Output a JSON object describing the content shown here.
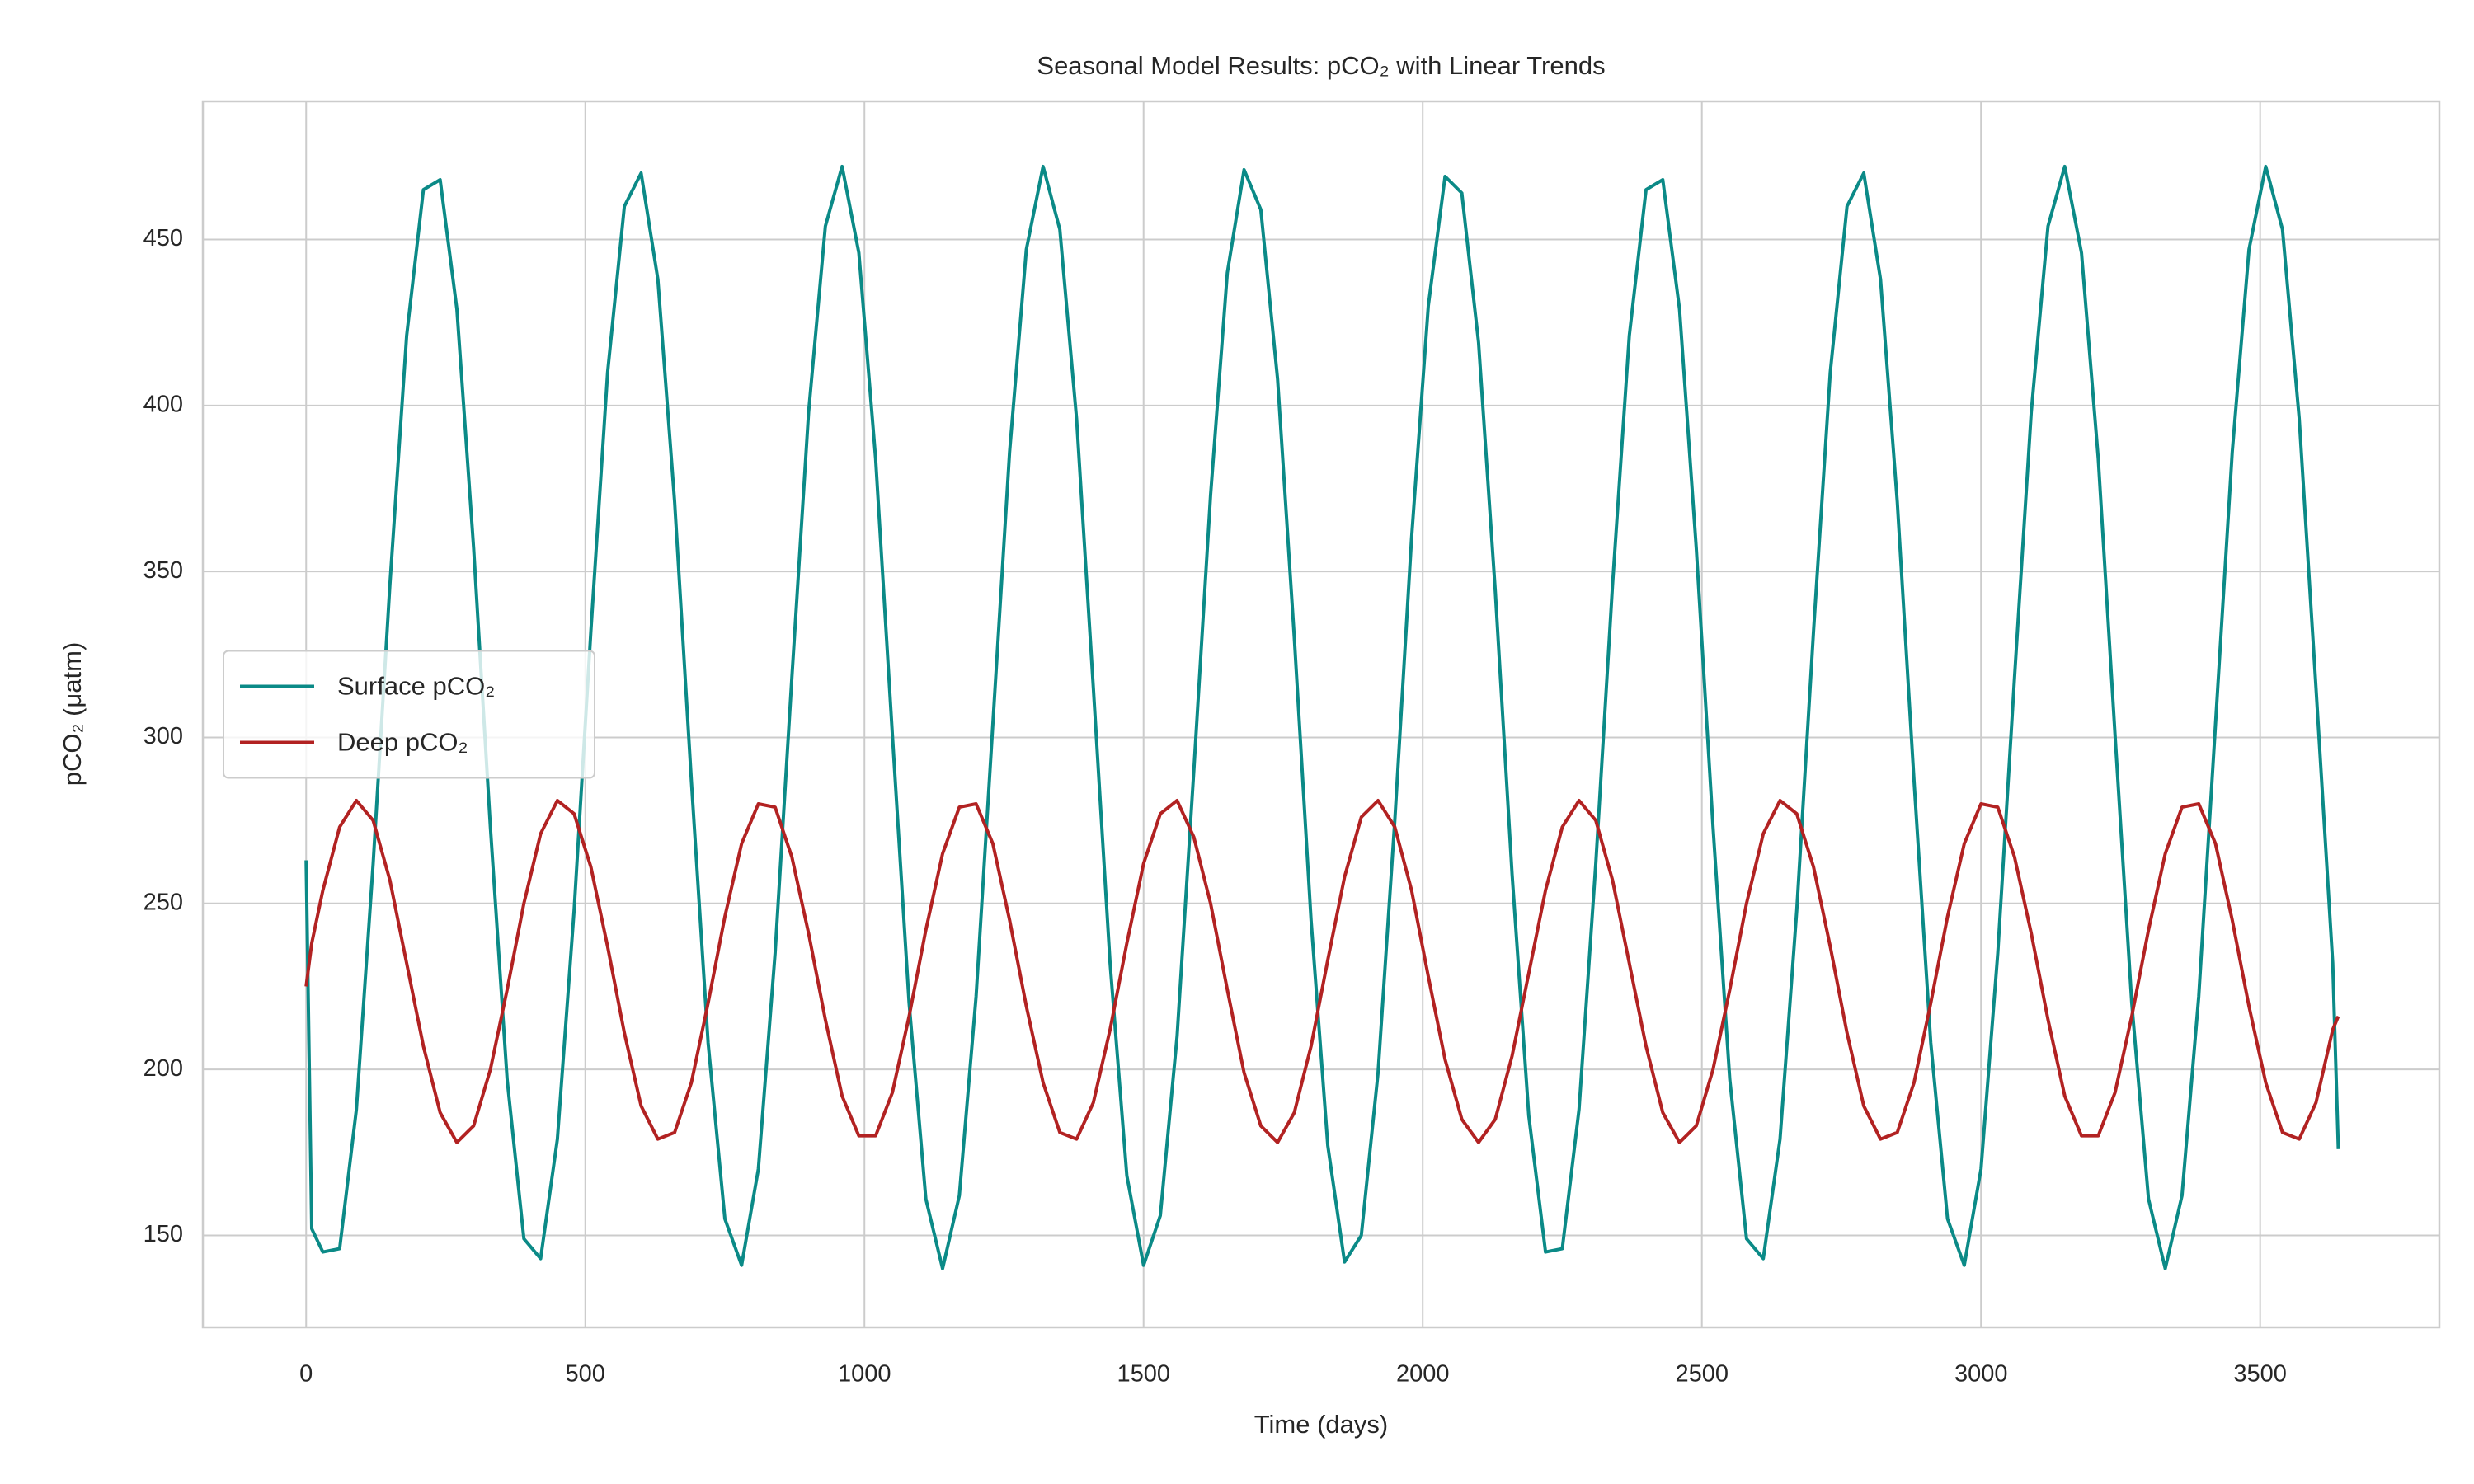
{
  "chart_data": {
    "type": "line",
    "title": "Seasonal Model Results: pCO₂ with Linear Trends",
    "xlabel": "Time (days)",
    "ylabel": "pCO₂ (μatm)",
    "x": [
      0,
      10,
      30,
      60,
      90,
      120,
      150,
      180,
      210,
      240,
      270,
      300,
      330,
      360,
      390,
      420,
      450,
      480,
      510,
      540,
      570,
      600,
      630,
      660,
      690,
      720,
      750,
      780,
      810,
      840,
      870,
      900,
      930,
      960,
      990,
      1020,
      1050,
      1080,
      1110,
      1140,
      1170,
      1200,
      1230,
      1260,
      1290,
      1320,
      1350,
      1380,
      1410,
      1440,
      1470,
      1500,
      1530,
      1560,
      1590,
      1620,
      1650,
      1680,
      1710,
      1740,
      1770,
      1800,
      1830,
      1860,
      1890,
      1920,
      1950,
      1980,
      2010,
      2040,
      2070,
      2100,
      2130,
      2160,
      2190,
      2220,
      2250,
      2280,
      2310,
      2340,
      2370,
      2400,
      2430,
      2460,
      2490,
      2520,
      2550,
      2580,
      2610,
      2640,
      2670,
      2700,
      2730,
      2760,
      2790,
      2820,
      2850,
      2880,
      2910,
      2940,
      2970,
      3000,
      3030,
      3060,
      3090,
      3120,
      3150,
      3180,
      3210,
      3240,
      3270,
      3300,
      3330,
      3360,
      3390,
      3420,
      3450,
      3480,
      3510,
      3540,
      3570,
      3600,
      3630,
      3640
    ],
    "series": [
      {
        "name": "Surface pCO₂",
        "color": "#0b8a87",
        "values": [
          263,
          152,
          145,
          146,
          188,
          262,
          346,
          421,
          465,
          468,
          429,
          357,
          273,
          197,
          149,
          143,
          179,
          248,
          332,
          410,
          460,
          470,
          438,
          371,
          287,
          208,
          155,
          141,
          170,
          235,
          318,
          398,
          454,
          472,
          446,
          384,
          301,
          220,
          161,
          140,
          162,
          222,
          304,
          386,
          447,
          472,
          453,
          396,
          315,
          232,
          168,
          141,
          156,
          210,
          290,
          373,
          440,
          471,
          459,
          408,
          330,
          245,
          177,
          142,
          150,
          199,
          275,
          360,
          430,
          469,
          464,
          419,
          344,
          259,
          186,
          145,
          146,
          188,
          262,
          346,
          421,
          465,
          468,
          429,
          357,
          273,
          197,
          149,
          143,
          179,
          248,
          332,
          410,
          460,
          470,
          438,
          371,
          287,
          208,
          155,
          141,
          170,
          235,
          318,
          398,
          454,
          472,
          446,
          384,
          301,
          220,
          161,
          140,
          162,
          222,
          304,
          386,
          447,
          472,
          453,
          396,
          315,
          232,
          176
        ]
      },
      {
        "name": "Deep pCO₂",
        "color": "#b22222",
        "values": [
          225,
          238,
          254,
          273,
          281,
          275,
          257,
          232,
          207,
          187,
          178,
          183,
          200,
          224,
          250,
          271,
          281,
          277,
          261,
          237,
          211,
          189,
          179,
          181,
          196,
          220,
          246,
          268,
          280,
          279,
          264,
          241,
          215,
          192,
          180,
          180,
          193,
          216,
          242,
          265,
          279,
          280,
          268,
          245,
          219,
          196,
          181,
          179,
          190,
          212,
          238,
          262,
          277,
          281,
          270,
          250,
          224,
          199,
          183,
          178,
          187,
          207,
          233,
          258,
          276,
          281,
          273,
          254,
          228,
          203,
          185,
          178,
          185,
          204,
          229,
          254,
          273,
          281,
          275,
          257,
          232,
          207,
          187,
          178,
          183,
          200,
          224,
          250,
          271,
          281,
          277,
          261,
          237,
          211,
          189,
          179,
          181,
          196,
          220,
          246,
          268,
          280,
          279,
          264,
          241,
          215,
          192,
          180,
          180,
          193,
          216,
          242,
          265,
          279,
          280,
          268,
          245,
          219,
          196,
          181,
          179,
          190,
          212,
          216
        ]
      }
    ],
    "xlim": [
      -185,
      3821
    ],
    "xticks": [
      0,
      500,
      1000,
      1500,
      2000,
      2500,
      3000,
      3500
    ],
    "ylim": [
      122.3,
      491.6
    ],
    "yticks": [
      150,
      200,
      250,
      300,
      350,
      400,
      450
    ],
    "grid": true,
    "legend": "center left"
  }
}
